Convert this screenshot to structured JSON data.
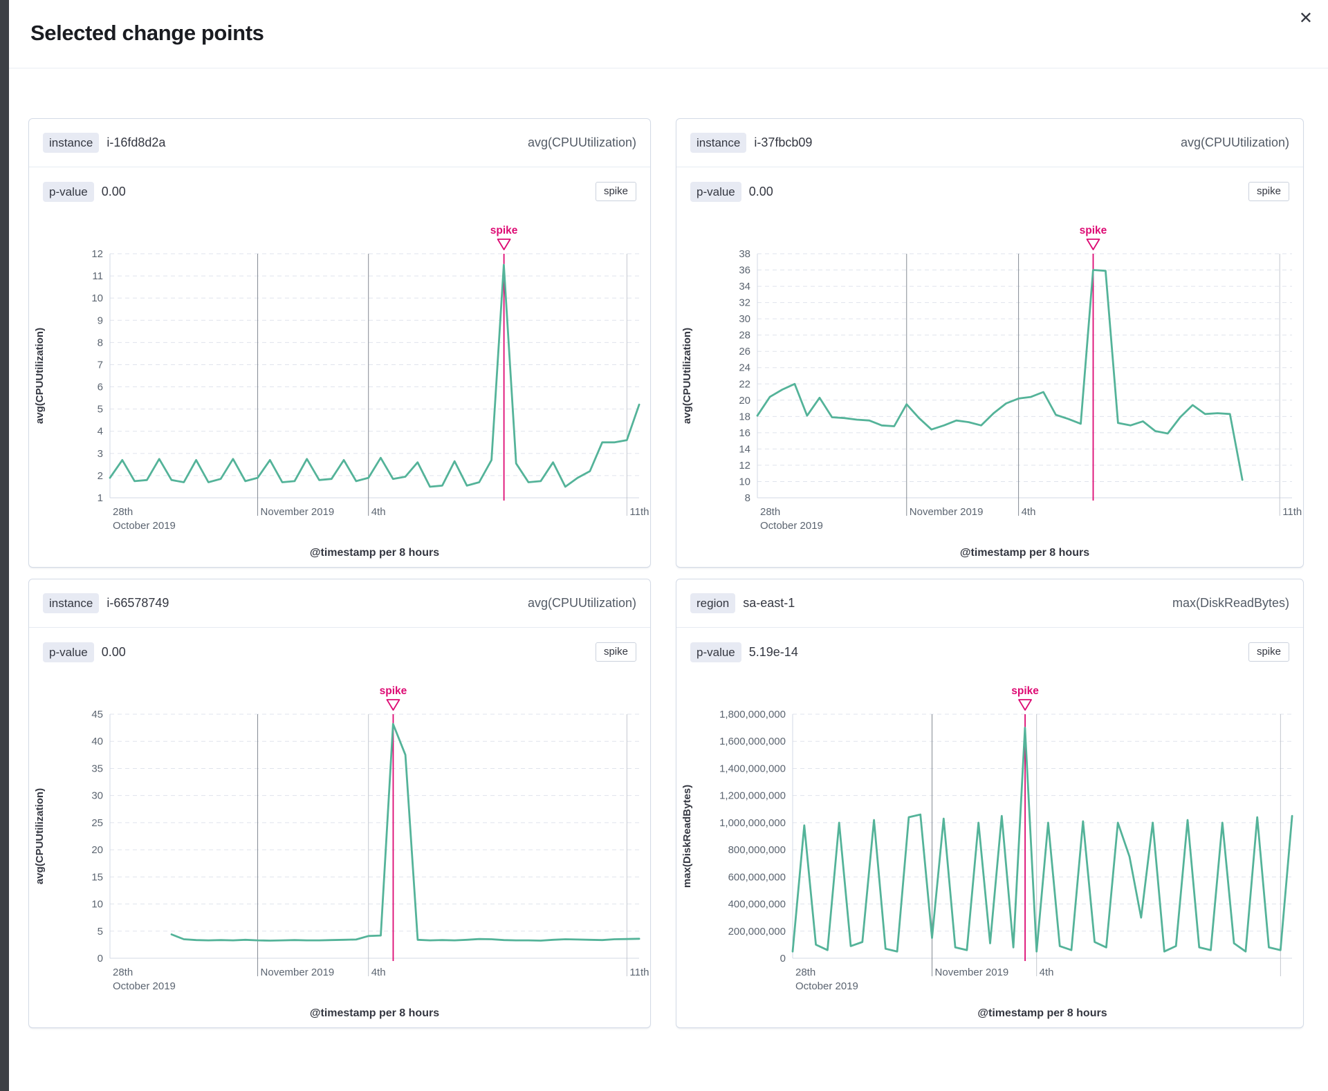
{
  "modal": {
    "title": "Selected change points",
    "close_icon": "✕"
  },
  "colors": {
    "accent_pink": "#dd0a73",
    "series_green": "#54b399",
    "gridline_dashed": "#dfe3ec",
    "axis_line": "#d3dae6",
    "vgrid_dark": "#848a93",
    "vgrid_light": "#c3c7ce",
    "tick_text": "#5b6470",
    "axis_title_text": "#343741"
  },
  "chart_data": [
    {
      "type": "line",
      "group_field": "instance",
      "group_value": "i-16fd8d2a",
      "metric": "avg(CPUUtilization)",
      "p_value_label": "p-value",
      "p_value": "0.00",
      "change_type": "spike",
      "spike_label": "spike",
      "xlabel": "@timestamp per 8 hours",
      "ylabel": "avg(CPUUtilization)",
      "ylim": [
        1,
        12
      ],
      "ytick_step": 1,
      "y_format": "plain",
      "xlim": [
        0,
        14.33
      ],
      "x_unit": "days from 2019-10-28, 1 point per 8 hours",
      "x_gridlines": [
        {
          "day": 4,
          "shade": "dark"
        },
        {
          "day": 7,
          "shade": "dark"
        },
        {
          "day": 14,
          "shade": "light"
        }
      ],
      "x_tick_labels": [
        {
          "day": 0,
          "lines": [
            "28th",
            "October 2019"
          ]
        },
        {
          "day": 4,
          "lines": [
            "November 2019"
          ]
        },
        {
          "day": 7,
          "lines": [
            "4th"
          ]
        },
        {
          "day": 14,
          "lines": [
            "11th"
          ]
        }
      ],
      "spike_day": 10.67,
      "series": {
        "name": "avg(CPUUtilization)",
        "start_day": 0,
        "interval_days": 0.3333,
        "values": [
          1.9,
          2.7,
          1.75,
          1.8,
          2.75,
          1.8,
          1.7,
          2.7,
          1.7,
          1.85,
          2.75,
          1.75,
          1.9,
          2.7,
          1.7,
          1.75,
          2.75,
          1.8,
          1.85,
          2.7,
          1.75,
          1.9,
          2.8,
          1.85,
          1.95,
          2.6,
          1.5,
          1.55,
          2.65,
          1.55,
          1.7,
          2.7,
          11.5,
          2.55,
          1.7,
          1.75,
          2.6,
          1.5,
          1.9,
          2.2,
          3.5,
          3.5,
          3.6,
          5.2
        ]
      }
    },
    {
      "type": "line",
      "group_field": "instance",
      "group_value": "i-37fbcb09",
      "metric": "avg(CPUUtilization)",
      "p_value_label": "p-value",
      "p_value": "0.00",
      "change_type": "spike",
      "spike_label": "spike",
      "xlabel": "@timestamp per 8 hours",
      "ylabel": "avg(CPUUtilization)",
      "ylim": [
        8,
        38
      ],
      "ytick_step": 2,
      "y_format": "plain",
      "xlim": [
        0,
        14.33
      ],
      "x_unit": "days from 2019-10-28, 1 point per 8 hours",
      "x_gridlines": [
        {
          "day": 4,
          "shade": "dark"
        },
        {
          "day": 7,
          "shade": "dark"
        },
        {
          "day": 14,
          "shade": "light"
        }
      ],
      "x_tick_labels": [
        {
          "day": 0,
          "lines": [
            "28th",
            "October 2019"
          ]
        },
        {
          "day": 4,
          "lines": [
            "November 2019"
          ]
        },
        {
          "day": 7,
          "lines": [
            "4th"
          ]
        },
        {
          "day": 14,
          "lines": [
            "11th"
          ]
        }
      ],
      "spike_day": 9.0,
      "series": {
        "name": "avg(CPUUtilization)",
        "start_day": 0,
        "interval_days": 0.3333,
        "values": [
          18.1,
          20.4,
          21.3,
          22.0,
          18.1,
          20.3,
          17.9,
          17.8,
          17.6,
          17.5,
          16.9,
          16.8,
          19.5,
          17.8,
          16.4,
          16.9,
          17.5,
          17.3,
          16.9,
          18.4,
          19.6,
          20.2,
          20.4,
          21.0,
          18.2,
          17.7,
          17.1,
          36.0,
          35.9,
          17.2,
          16.9,
          17.4,
          16.2,
          15.9,
          17.9,
          19.4,
          18.3,
          18.4,
          18.3,
          10.2
        ]
      }
    },
    {
      "type": "line",
      "group_field": "instance",
      "group_value": "i-66578749",
      "metric": "avg(CPUUtilization)",
      "p_value_label": "p-value",
      "p_value": "0.00",
      "change_type": "spike",
      "spike_label": "spike",
      "xlabel": "@timestamp per 8 hours",
      "ylabel": "avg(CPUUtilization)",
      "ylim": [
        0,
        45
      ],
      "ytick_step": 5,
      "y_format": "plain",
      "xlim": [
        0,
        14.33
      ],
      "x_unit": "days from 2019-10-28, 1 point per 8 hours",
      "x_gridlines": [
        {
          "day": 4,
          "shade": "dark"
        },
        {
          "day": 7,
          "shade": "light"
        },
        {
          "day": 14,
          "shade": "light"
        }
      ],
      "x_tick_labels": [
        {
          "day": 0,
          "lines": [
            "28th",
            "October 2019"
          ]
        },
        {
          "day": 4,
          "lines": [
            "November 2019"
          ]
        },
        {
          "day": 7,
          "lines": [
            "4th"
          ]
        },
        {
          "day": 14,
          "lines": [
            "11th"
          ]
        }
      ],
      "spike_day": 7.67,
      "series": {
        "name": "avg(CPUUtilization)",
        "start_day": 1.667,
        "interval_days": 0.3333,
        "values": [
          4.4,
          3.5,
          3.35,
          3.3,
          3.35,
          3.3,
          3.4,
          3.3,
          3.25,
          3.3,
          3.35,
          3.3,
          3.3,
          3.35,
          3.4,
          3.45,
          4.1,
          4.2,
          43.2,
          37.5,
          3.4,
          3.3,
          3.35,
          3.3,
          3.4,
          3.55,
          3.5,
          3.35,
          3.3,
          3.3,
          3.25,
          3.4,
          3.5,
          3.45,
          3.4,
          3.35,
          3.5,
          3.55,
          3.6
        ]
      }
    },
    {
      "type": "line",
      "group_field": "region",
      "group_value": "sa-east-1",
      "metric": "max(DiskReadBytes)",
      "p_value_label": "p-value",
      "p_value": "5.19e-14",
      "change_type": "spike",
      "spike_label": "spike",
      "xlabel": "@timestamp per 8 hours",
      "ylabel": "max(DiskReadBytes)",
      "ylim": [
        0,
        1800000000
      ],
      "ytick_step": 200000000,
      "y_format": "comma",
      "xlim": [
        0,
        14.33
      ],
      "x_unit": "days from 2019-10-28, 1 point per 8 hours",
      "x_gridlines": [
        {
          "day": 4,
          "shade": "dark"
        },
        {
          "day": 7,
          "shade": "light"
        },
        {
          "day": 14,
          "shade": "light"
        }
      ],
      "x_tick_labels": [
        {
          "day": 0,
          "lines": [
            "28th",
            "October 2019"
          ]
        },
        {
          "day": 4,
          "lines": [
            "November 2019"
          ]
        },
        {
          "day": 7,
          "lines": [
            "4th"
          ]
        }
      ],
      "spike_day": 6.67,
      "series": {
        "name": "max(DiskReadBytes)",
        "start_day": 0,
        "interval_days": 0.3333,
        "values": [
          50000000,
          980000000,
          100000000,
          60000000,
          1000000000,
          90000000,
          120000000,
          1020000000,
          70000000,
          50000000,
          1040000000,
          1060000000,
          150000000,
          1030000000,
          80000000,
          60000000,
          1000000000,
          110000000,
          1050000000,
          80000000,
          1700000000,
          50000000,
          1000000000,
          90000000,
          60000000,
          1010000000,
          120000000,
          80000000,
          1000000000,
          750000000,
          300000000,
          1000000000,
          50000000,
          90000000,
          1020000000,
          80000000,
          60000000,
          1000000000,
          110000000,
          50000000,
          1040000000,
          80000000,
          60000000,
          1050000000
        ]
      }
    }
  ]
}
